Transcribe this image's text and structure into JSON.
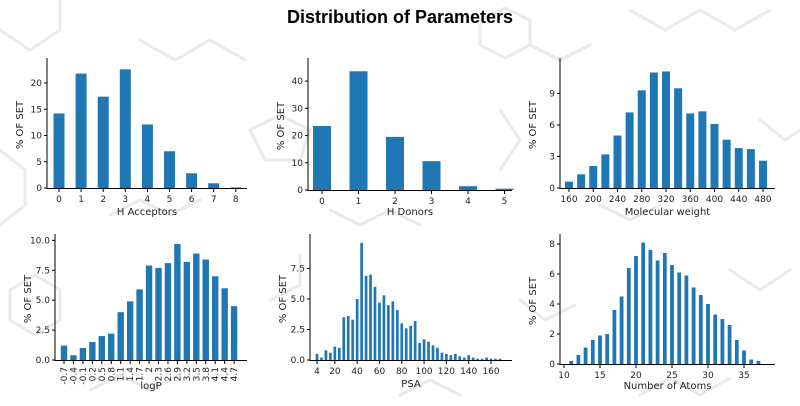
{
  "title": "Distribution of Parameters",
  "colors": {
    "bar": "#1f77b4",
    "axis": "#000000",
    "background_lines": "#e8e8e8"
  },
  "chart_data": [
    {
      "type": "bar",
      "xlabel": "H Acceptors",
      "ylabel": "% OF SET",
      "categories": [
        "0",
        "1",
        "2",
        "3",
        "4",
        "5",
        "6",
        "7",
        "8"
      ],
      "values": [
        14.2,
        21.8,
        17.4,
        22.6,
        12.1,
        7.0,
        2.8,
        0.9,
        0.1
      ],
      "yticks": [
        0,
        5,
        10,
        15,
        20
      ],
      "ylim": [
        0,
        24
      ],
      "grid": false
    },
    {
      "type": "bar",
      "xlabel": "H Donors",
      "ylabel": "% OF SET",
      "categories": [
        "0",
        "1",
        "2",
        "3",
        "4",
        "5"
      ],
      "values": [
        23.5,
        43.6,
        19.5,
        10.6,
        1.4,
        0.5
      ],
      "yticks": [
        0,
        10,
        20,
        30,
        40
      ],
      "ylim": [
        0,
        47
      ],
      "grid": false
    },
    {
      "type": "bar",
      "xlabel": "Molecular weight",
      "ylabel": "% OF SET",
      "x": [
        160,
        180,
        200,
        220,
        240,
        260,
        280,
        300,
        320,
        340,
        360,
        380,
        400,
        420,
        440,
        460,
        480
      ],
      "values": [
        0.6,
        1.3,
        2.1,
        3.2,
        5.0,
        7.2,
        9.3,
        11.0,
        11.1,
        9.5,
        7.1,
        7.3,
        6.1,
        4.6,
        3.8,
        3.7,
        2.6
      ],
      "xticks": [
        160,
        200,
        240,
        280,
        320,
        360,
        400,
        440,
        480
      ],
      "yticks": [
        0,
        3,
        6,
        9
      ],
      "ylim": [
        0,
        12
      ],
      "grid": false
    },
    {
      "type": "bar",
      "xlabel": "logP",
      "ylabel": "% OF SET",
      "categories": [
        "-0.7",
        "-0.4",
        "-0.1",
        "0.2",
        "0.5",
        "0.8",
        "1.1",
        "1.4",
        "1.7",
        "2",
        "2.3",
        "2.6",
        "2.9",
        "3.2",
        "3.5",
        "3.8",
        "4.1",
        "4.4",
        "4.7"
      ],
      "values": [
        1.2,
        0.4,
        1.0,
        1.5,
        2.0,
        2.2,
        4.0,
        4.9,
        5.9,
        7.9,
        7.7,
        8.1,
        9.7,
        8.2,
        8.9,
        8.4,
        7.0,
        6.0,
        4.5
      ],
      "yticks": [
        "0.0",
        "2.5",
        "5.0",
        "7.5",
        "10.0"
      ],
      "ylim": [
        0,
        10.2
      ],
      "grid": false
    },
    {
      "type": "bar",
      "xlabel": "PSA",
      "ylabel": "% OF SET",
      "x": [
        4,
        8,
        12,
        16,
        20,
        24,
        28,
        32,
        36,
        40,
        44,
        48,
        52,
        56,
        60,
        64,
        68,
        72,
        76,
        80,
        84,
        88,
        92,
        96,
        100,
        104,
        108,
        112,
        116,
        120,
        124,
        128,
        132,
        136,
        140,
        144,
        148,
        152,
        156,
        160,
        164,
        168
      ],
      "values": [
        0.5,
        0.2,
        0.8,
        0.6,
        1.1,
        1.0,
        3.5,
        3.6,
        3.3,
        5.0,
        9.6,
        6.9,
        7.0,
        6.0,
        4.7,
        5.3,
        4.5,
        4.8,
        4.1,
        3.0,
        2.6,
        2.8,
        3.2,
        1.4,
        1.7,
        1.5,
        1.2,
        1.0,
        0.6,
        0.5,
        0.4,
        0.5,
        0.3,
        0.2,
        0.4,
        0.2,
        0.1,
        0.1,
        0.2,
        0.1,
        0.1,
        0.1
      ],
      "xticks": [
        4,
        20,
        40,
        60,
        80,
        100,
        120,
        140,
        160
      ],
      "yticks": [
        0,
        2.5,
        5,
        7.5
      ],
      "ytick_labels": [
        "0.0",
        "2.5",
        "5.0",
        "7.5"
      ],
      "ylim": [
        0,
        10
      ],
      "grid": false
    },
    {
      "type": "bar",
      "xlabel": "Number of Atoms",
      "ylabel": "% OF SET",
      "x": [
        11,
        12,
        13,
        14,
        15,
        16,
        17,
        18,
        19,
        20,
        21,
        22,
        23,
        24,
        25,
        26,
        27,
        28,
        29,
        30,
        31,
        32,
        33,
        34,
        35,
        36,
        37
      ],
      "values": [
        0.2,
        0.6,
        1.1,
        1.6,
        1.9,
        2.0,
        3.6,
        4.5,
        6.4,
        7.2,
        8.1,
        7.6,
        6.9,
        7.4,
        6.6,
        6.1,
        5.9,
        5.1,
        4.6,
        4.0,
        3.3,
        3.0,
        2.6,
        1.6,
        0.9,
        0.3,
        0.2
      ],
      "xticks": [
        10,
        15,
        20,
        25,
        30,
        35
      ],
      "yticks": [
        0,
        2,
        4,
        6,
        8
      ],
      "ylim": [
        0,
        8.4
      ],
      "grid": false
    }
  ]
}
